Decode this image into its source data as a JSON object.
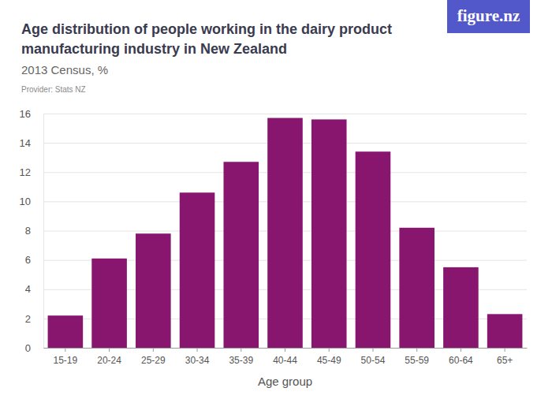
{
  "chart_data": {
    "type": "bar",
    "title": "Age distribution of people working in the dairy product manufacturing industry in New Zealand",
    "subtitle": "2013 Census, %",
    "provider": "Provider: Stats NZ",
    "logo": "figure.nz",
    "x_label": "Age group",
    "categories": [
      "15-19",
      "20-24",
      "25-29",
      "30-34",
      "35-39",
      "40-44",
      "45-49",
      "50-54",
      "55-59",
      "60-64",
      "65+"
    ],
    "values": [
      2.2,
      6.1,
      7.8,
      10.6,
      12.7,
      15.7,
      15.6,
      13.4,
      8.2,
      5.5,
      2.3
    ],
    "color": "#88166f",
    "ylim": [
      0,
      16
    ],
    "yticks": [
      0,
      2,
      4,
      6,
      8,
      10,
      12,
      14,
      16
    ],
    "grid": true
  }
}
